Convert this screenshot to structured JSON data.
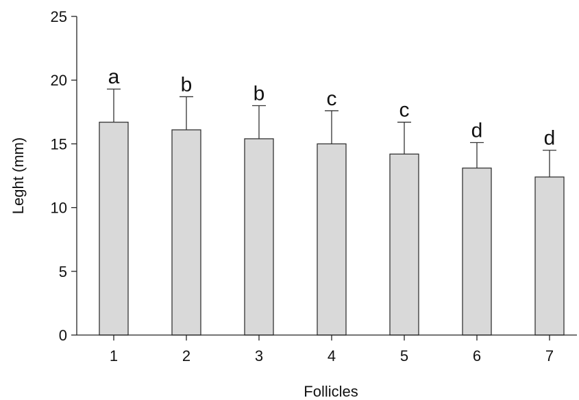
{
  "chart_data": {
    "type": "bar",
    "categories": [
      "1",
      "2",
      "3",
      "4",
      "5",
      "6",
      "7"
    ],
    "values": [
      16.7,
      16.1,
      15.4,
      15.0,
      14.2,
      13.1,
      12.4
    ],
    "error_upper": [
      19.3,
      18.7,
      18.0,
      17.6,
      16.7,
      15.1,
      14.5
    ],
    "significance_letters": [
      "a",
      "b",
      "b",
      "c",
      "c",
      "d",
      "d"
    ],
    "xlabel": "Follicles",
    "ylabel": "Leght (mm)",
    "ylim": [
      0,
      25
    ],
    "yticks": [
      "0",
      "5",
      "10",
      "15",
      "20",
      "25"
    ],
    "grid": false,
    "colors": {
      "bar_fill": "#d9d9d9",
      "bar_stroke": "#333333"
    }
  }
}
